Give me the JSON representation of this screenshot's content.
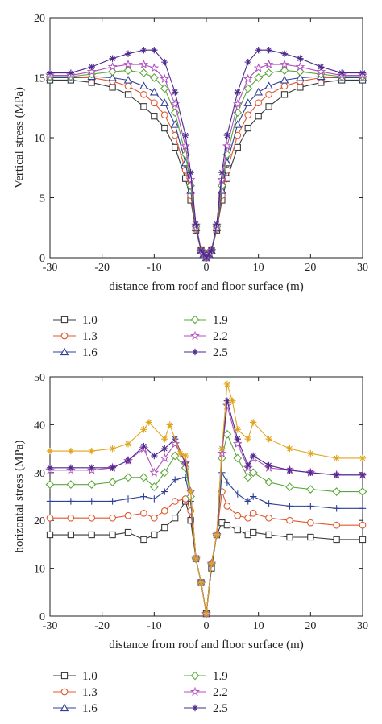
{
  "chart_data": [
    {
      "type": "line",
      "xlabel": "distance from roof and floor surface (m)",
      "ylabel": "Vertical stress (MPa)",
      "xlim": [
        -30,
        30
      ],
      "ylim": [
        0,
        20
      ],
      "xticks": [
        "-30",
        "-20",
        "-10",
        "0",
        "10",
        "20",
        "30"
      ],
      "yticks": [
        "0",
        "5",
        "10",
        "15",
        "20"
      ],
      "grid": false,
      "legend_position": "below",
      "series": [
        {
          "name": "1.0",
          "marker": "square",
          "color": "#3a3a3a",
          "x": [
            -30,
            -26,
            -22,
            -18,
            -15,
            -12,
            -10,
            -8,
            -6,
            -4,
            -3,
            -2,
            -1,
            -0.5,
            0,
            0.5,
            1,
            2,
            3,
            4,
            6,
            8,
            10,
            12,
            15,
            18,
            22,
            26,
            30
          ],
          "y": [
            14.8,
            14.8,
            14.6,
            14.2,
            13.6,
            12.6,
            11.8,
            10.8,
            9.2,
            6.6,
            4.8,
            2.3,
            0.6,
            0.3,
            0,
            0.3,
            0.6,
            2.3,
            4.8,
            6.6,
            9.2,
            10.8,
            11.8,
            12.6,
            13.6,
            14.2,
            14.6,
            14.8,
            14.8
          ]
        },
        {
          "name": "1.3",
          "marker": "circle",
          "color": "#e0582f",
          "x": [
            -30,
            -26,
            -22,
            -18,
            -15,
            -12,
            -10,
            -8,
            -6,
            -4,
            -3,
            -2,
            -1,
            -0.5,
            0,
            0.5,
            1,
            2,
            3,
            4,
            6,
            8,
            10,
            12,
            15,
            18,
            22,
            26,
            30
          ],
          "y": [
            15.0,
            15.0,
            15.0,
            14.7,
            14.3,
            13.6,
            12.9,
            11.9,
            10.2,
            7.3,
            5.2,
            2.4,
            0.6,
            0.3,
            0,
            0.3,
            0.6,
            2.4,
            5.2,
            7.3,
            10.2,
            11.9,
            12.9,
            13.6,
            14.3,
            14.7,
            15.0,
            15.0,
            15.0
          ]
        },
        {
          "name": "1.6",
          "marker": "triangle",
          "color": "#2f3f95",
          "x": [
            -30,
            -26,
            -22,
            -18,
            -15,
            -12,
            -10,
            -8,
            -6,
            -4,
            -3,
            -2,
            -1,
            -0.5,
            0,
            0.5,
            1,
            2,
            3,
            4,
            6,
            8,
            10,
            12,
            15,
            18,
            22,
            26,
            30
          ],
          "y": [
            15.0,
            15.0,
            15.1,
            15.0,
            14.8,
            14.3,
            13.8,
            12.9,
            11.1,
            7.9,
            5.6,
            2.5,
            0.6,
            0.3,
            0,
            0.3,
            0.6,
            2.5,
            5.6,
            7.9,
            11.1,
            12.9,
            13.8,
            14.3,
            14.8,
            15.0,
            15.1,
            15.0,
            15.0
          ]
        },
        {
          "name": "1.9",
          "marker": "diamond",
          "color": "#5aa83a",
          "x": [
            -30,
            -26,
            -22,
            -18,
            -15,
            -12,
            -10,
            -8,
            -6,
            -4,
            -3,
            -2,
            -1,
            -0.5,
            0,
            0.5,
            1,
            2,
            3,
            4,
            6,
            8,
            10,
            12,
            15,
            18,
            22,
            26,
            30
          ],
          "y": [
            15.1,
            15.1,
            15.3,
            15.5,
            15.6,
            15.4,
            15.0,
            14.1,
            12.1,
            8.6,
            6.0,
            2.6,
            0.6,
            0.3,
            0,
            0.3,
            0.6,
            2.6,
            6.0,
            8.6,
            12.1,
            14.1,
            15.0,
            15.4,
            15.6,
            15.5,
            15.3,
            15.1,
            15.1
          ]
        },
        {
          "name": "2.2",
          "marker": "star",
          "color": "#b24fbf",
          "x": [
            -30,
            -26,
            -22,
            -18,
            -15,
            -12,
            -10,
            -8,
            -6,
            -4,
            -3,
            -2,
            -1,
            -0.5,
            0,
            0.5,
            1,
            2,
            3,
            4,
            6,
            8,
            10,
            12,
            15,
            18,
            22,
            26,
            30
          ],
          "y": [
            15.2,
            15.2,
            15.5,
            15.9,
            16.1,
            16.1,
            15.8,
            14.9,
            12.8,
            9.3,
            6.5,
            2.7,
            0.6,
            0.3,
            0,
            0.3,
            0.6,
            2.7,
            6.5,
            9.3,
            12.8,
            14.9,
            15.8,
            16.1,
            16.1,
            15.9,
            15.5,
            15.2,
            15.2
          ]
        },
        {
          "name": "2.5",
          "marker": "asterisk",
          "color": "#4b2a8c",
          "x": [
            -30,
            -26,
            -22,
            -18,
            -15,
            -12,
            -10,
            -8,
            -6,
            -4,
            -3,
            -2,
            -1,
            -0.5,
            0,
            0.5,
            1,
            2,
            3,
            4,
            6,
            8,
            10,
            12,
            15,
            18,
            22,
            26,
            30
          ],
          "y": [
            15.4,
            15.4,
            15.9,
            16.6,
            17.0,
            17.3,
            17.3,
            16.3,
            13.8,
            10.2,
            7.1,
            2.8,
            0.6,
            0.3,
            0,
            0.3,
            0.6,
            2.8,
            7.1,
            10.2,
            13.8,
            16.3,
            17.3,
            17.3,
            17.0,
            16.6,
            15.9,
            15.4,
            15.4
          ]
        }
      ]
    },
    {
      "type": "line",
      "xlabel": "distance from roof and floor surface (m)",
      "ylabel": "horizontal stress (MPa)",
      "xlim": [
        -30,
        30
      ],
      "ylim": [
        0,
        50
      ],
      "xticks": [
        "-30",
        "-20",
        "-10",
        "0",
        "10",
        "20",
        "30"
      ],
      "yticks": [
        "0",
        "10",
        "20",
        "30",
        "40",
        "50"
      ],
      "grid": false,
      "legend_position": "below",
      "series": [
        {
          "name": "1.0",
          "marker": "square",
          "color": "#3a3a3a",
          "x": [
            -30,
            -26,
            -22,
            -18,
            -15,
            -12,
            -10,
            -8,
            -6,
            -4,
            -3,
            -2,
            -1,
            0,
            1,
            2,
            3,
            4,
            6,
            8,
            9,
            12,
            16,
            20,
            25,
            30
          ],
          "y": [
            17.0,
            17.0,
            17.0,
            17.0,
            17.5,
            16.0,
            17.0,
            18.5,
            20.5,
            24.0,
            20.0,
            12.0,
            7.0,
            0.5,
            10.0,
            17.0,
            19.5,
            19.0,
            18.0,
            17.0,
            17.5,
            17.0,
            16.5,
            16.5,
            16.0,
            16.0
          ]
        },
        {
          "name": "1.3",
          "marker": "circle",
          "color": "#e0582f",
          "x": [
            -30,
            -26,
            -22,
            -18,
            -15,
            -12,
            -10,
            -8,
            -6,
            -4,
            -3,
            -2,
            -1,
            0,
            1,
            2,
            3,
            4,
            6,
            8,
            9,
            12,
            16,
            20,
            25,
            30
          ],
          "y": [
            20.5,
            20.5,
            20.5,
            20.5,
            21.0,
            21.5,
            20.5,
            22.0,
            24.0,
            24.5,
            22.0,
            12.0,
            7.0,
            0.5,
            11.0,
            17.0,
            26.0,
            23.0,
            21.0,
            20.5,
            21.5,
            20.5,
            20.0,
            19.5,
            19.0,
            19.0
          ]
        },
        {
          "name": "1.6",
          "marker": "plus",
          "color": "#2f3f95",
          "x": [
            -30,
            -26,
            -22,
            -18,
            -15,
            -12,
            -10,
            -8,
            -6,
            -4,
            -3,
            -2,
            -1,
            0,
            1,
            2,
            3,
            4,
            6,
            8,
            9,
            12,
            16,
            20,
            25,
            30
          ],
          "y": [
            24.0,
            24.0,
            24.0,
            24.0,
            24.5,
            25.0,
            24.5,
            26.0,
            28.5,
            29.0,
            24.0,
            12.0,
            7.0,
            0.5,
            11.0,
            17.0,
            30.0,
            28.0,
            25.5,
            24.0,
            25.0,
            23.5,
            23.0,
            23.0,
            22.5,
            22.5
          ]
        },
        {
          "name": "1.9",
          "marker": "diamond",
          "color": "#5aa83a",
          "x": [
            -30,
            -26,
            -22,
            -18,
            -15,
            -12,
            -10,
            -8,
            -6,
            -4,
            -3,
            -2,
            -1,
            0,
            1,
            2,
            3,
            4,
            6,
            8,
            9,
            12,
            16,
            20,
            25,
            30
          ],
          "y": [
            27.5,
            27.5,
            27.5,
            28.0,
            29.0,
            29.0,
            27.0,
            30.0,
            33.5,
            31.0,
            25.0,
            12.0,
            7.0,
            0.5,
            11.0,
            17.0,
            33.0,
            38.0,
            33.0,
            29.0,
            30.0,
            28.0,
            27.0,
            26.5,
            26.0,
            26.0
          ]
        },
        {
          "name": "2.2",
          "marker": "star",
          "color": "#b24fbf",
          "x": [
            -30,
            -26,
            -22,
            -18,
            -15,
            -12,
            -10,
            -8,
            -6,
            -4,
            -3,
            -2,
            -1,
            0,
            1,
            2,
            3,
            4,
            6,
            8,
            9,
            12,
            16,
            20,
            25,
            30
          ],
          "y": [
            30.5,
            30.5,
            30.5,
            31.0,
            32.5,
            35.0,
            30.0,
            33.0,
            36.0,
            32.0,
            26.0,
            12.0,
            7.0,
            0.5,
            11.0,
            17.0,
            34.0,
            44.0,
            36.0,
            31.0,
            33.0,
            31.0,
            30.5,
            30.0,
            29.5,
            29.5
          ]
        },
        {
          "name": "2.5",
          "marker": "asterisk",
          "color": "#4b2a8c",
          "x": [
            -30,
            -26,
            -22,
            -18,
            -15,
            -12,
            -10,
            -8,
            -6,
            -4,
            -3,
            -2,
            -1,
            0,
            1,
            2,
            3,
            4,
            6,
            8,
            9,
            12,
            16,
            20,
            25,
            30
          ],
          "y": [
            31.0,
            31.0,
            31.0,
            31.0,
            32.5,
            35.5,
            33.5,
            35.0,
            37.0,
            32.0,
            26.0,
            12.0,
            7.0,
            0.5,
            11.0,
            17.0,
            35.0,
            45.0,
            37.0,
            31.5,
            33.5,
            31.5,
            30.5,
            30.0,
            29.5,
            29.5
          ]
        },
        {
          "name": "",
          "marker": "asterisk",
          "color": "#e0a51c",
          "x": [
            -30,
            -26,
            -22,
            -18,
            -15,
            -12,
            -11,
            -8,
            -7,
            -5,
            -4,
            -3,
            -2,
            -1,
            0,
            1,
            2,
            3,
            4,
            5,
            6,
            8,
            9,
            12,
            16,
            20,
            25,
            30
          ],
          "y": [
            34.5,
            34.5,
            34.5,
            35.0,
            36.0,
            39.0,
            40.5,
            37.0,
            40.0,
            34.0,
            33.5,
            26.0,
            12.0,
            7.0,
            0.5,
            11.0,
            17.0,
            35.0,
            48.5,
            45.0,
            39.0,
            37.0,
            40.5,
            37.0,
            35.0,
            34.0,
            33.0,
            33.0
          ]
        }
      ]
    }
  ],
  "legends": [
    [
      "1.0",
      "1.3",
      "1.6",
      "1.9",
      "2.2",
      "2.5"
    ],
    [
      "1.0",
      "1.3",
      "1.6",
      "1.9",
      "2.2",
      "2.5"
    ]
  ]
}
